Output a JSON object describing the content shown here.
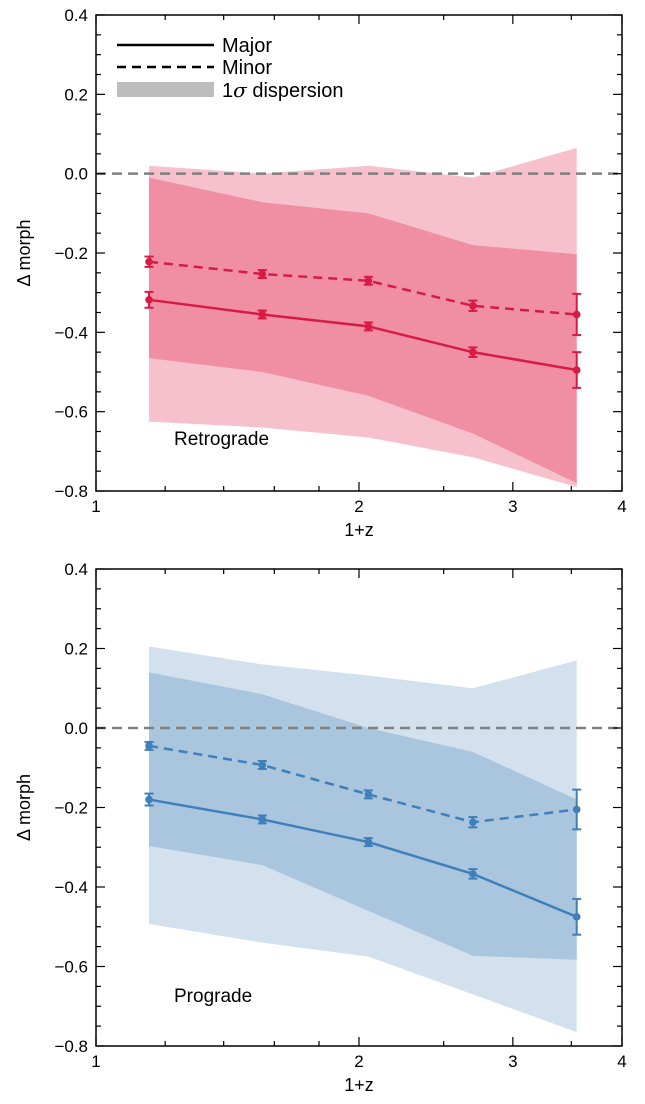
{
  "legend": {
    "major": "Major",
    "minor": "Minor",
    "dispersion_prefix": "1",
    "dispersion_sigma": "σ",
    "dispersion_suffix": " dispersion"
  },
  "colors": {
    "retrograde_line": "#d81b45",
    "retrograde_band_major": "#f08fa3",
    "retrograde_band_minor": "#f6c1cc",
    "prograde_line": "#3f7fba",
    "prograde_band_major": "#a9c6de",
    "prograde_band_minor": "#d3e1ee",
    "legend_band": "#bdbdbd",
    "zero_line": "#808080"
  },
  "chart_data": [
    {
      "type": "line",
      "panel_label": "Retrograde",
      "xlabel": "1+z",
      "ylabel": "Δ morph",
      "xscale": "log",
      "xlim": [
        1,
        4
      ],
      "ylim": [
        -0.8,
        0.4
      ],
      "xticks": [
        1,
        2,
        3,
        4
      ],
      "yticks": [
        -0.8,
        -0.6,
        -0.4,
        -0.2,
        0.0,
        0.2,
        0.4
      ],
      "hline": 0.0,
      "legend_placement": "top-left",
      "x": [
        1.15,
        1.55,
        2.05,
        2.7,
        3.55
      ],
      "series": [
        {
          "name": "Major",
          "style": "solid",
          "y": [
            -0.318,
            -0.355,
            -0.385,
            -0.45,
            -0.495
          ],
          "yerr": [
            0.02,
            0.01,
            0.01,
            0.012,
            0.045
          ]
        },
        {
          "name": "Minor",
          "style": "dashed",
          "y": [
            -0.222,
            -0.253,
            -0.27,
            -0.333,
            -0.355
          ],
          "yerr": [
            0.013,
            0.01,
            0.01,
            0.013,
            0.052
          ]
        }
      ],
      "bands": [
        {
          "series": "Minor",
          "upper": [
            0.02,
            0.0,
            0.02,
            -0.01,
            0.065
          ],
          "lower": [
            -0.625,
            -0.64,
            -0.665,
            -0.715,
            -0.79
          ]
        },
        {
          "series": "Major",
          "upper": [
            -0.01,
            -0.072,
            -0.1,
            -0.18,
            -0.203
          ],
          "lower": [
            -0.465,
            -0.5,
            -0.56,
            -0.655,
            -0.78
          ]
        }
      ]
    },
    {
      "type": "line",
      "panel_label": "Prograde",
      "xlabel": "1+z",
      "ylabel": "Δ morph",
      "xscale": "log",
      "xlim": [
        1,
        4
      ],
      "ylim": [
        -0.8,
        0.4
      ],
      "xticks": [
        1,
        2,
        3,
        4
      ],
      "yticks": [
        -0.8,
        -0.6,
        -0.4,
        -0.2,
        0.0,
        0.2,
        0.4
      ],
      "hline": 0.0,
      "x": [
        1.15,
        1.55,
        2.05,
        2.7,
        3.55
      ],
      "series": [
        {
          "name": "Major",
          "style": "solid",
          "y": [
            -0.18,
            -0.23,
            -0.287,
            -0.367,
            -0.475
          ],
          "yerr": [
            0.015,
            0.01,
            0.01,
            0.012,
            0.045
          ]
        },
        {
          "name": "Minor",
          "style": "dashed",
          "y": [
            -0.045,
            -0.093,
            -0.167,
            -0.237,
            -0.205
          ],
          "yerr": [
            0.01,
            0.01,
            0.01,
            0.013,
            0.05
          ]
        }
      ],
      "bands": [
        {
          "series": "Minor",
          "upper": [
            0.205,
            0.16,
            0.132,
            0.1,
            0.17
          ],
          "lower": [
            -0.493,
            -0.54,
            -0.575,
            -0.67,
            -0.765
          ]
        },
        {
          "series": "Major",
          "upper": [
            0.14,
            0.085,
            0.0,
            -0.06,
            -0.18
          ],
          "lower": [
            -0.297,
            -0.345,
            -0.46,
            -0.573,
            -0.583
          ]
        }
      ]
    }
  ]
}
